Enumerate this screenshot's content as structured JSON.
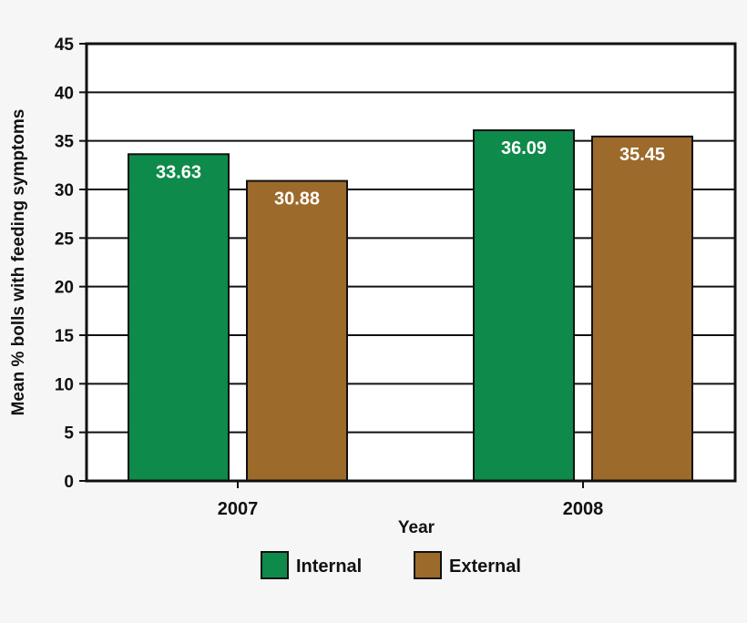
{
  "chart_data": {
    "type": "bar",
    "title": "",
    "xlabel": "Year",
    "ylabel": "Mean % bolls with feeding symptoms",
    "categories": [
      "2007",
      "2008"
    ],
    "series": [
      {
        "name": "Internal",
        "color": "#0e8a4a",
        "values": [
          33.63,
          36.09
        ]
      },
      {
        "name": "External",
        "color": "#9c6a2b",
        "values": [
          30.88,
          35.45
        ]
      }
    ],
    "data_labels": [
      [
        "33.63",
        "30.88"
      ],
      [
        "36.09",
        "35.45"
      ]
    ],
    "ylim": [
      0,
      45
    ],
    "yticks": [
      0,
      5,
      10,
      15,
      20,
      25,
      30,
      35,
      40,
      45
    ],
    "grid": true,
    "legend_position": "bottom-center"
  }
}
